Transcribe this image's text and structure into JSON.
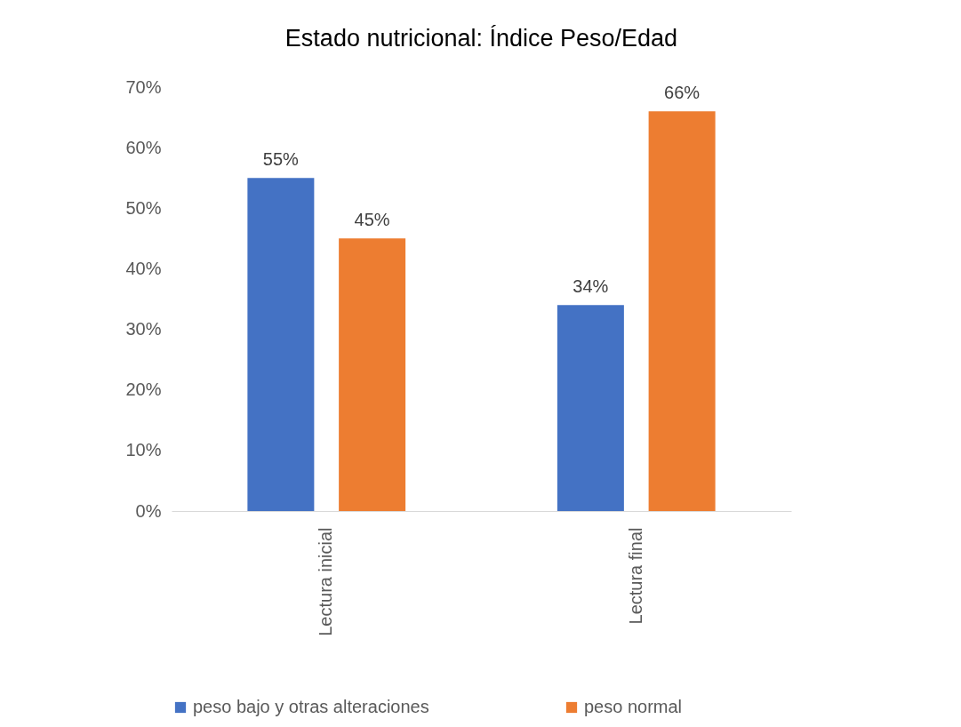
{
  "chart_data": {
    "type": "bar",
    "title": "Estado nutricional: Índice Peso/Edad",
    "categories": [
      "Lectura inicial",
      "Lectura final"
    ],
    "series": [
      {
        "name": "peso bajo y otras alteraciones",
        "color": "#4472c4",
        "values": [
          55,
          34
        ],
        "value_labels": [
          "55%",
          "34%"
        ]
      },
      {
        "name": "peso normal",
        "color": "#ed7d31",
        "values": [
          45,
          66
        ],
        "value_labels": [
          "45%",
          "66%"
        ]
      }
    ],
    "ylim": [
      0,
      70
    ],
    "yticks": [
      {
        "value": 0,
        "label": "0%"
      },
      {
        "value": 10,
        "label": "10%"
      },
      {
        "value": 20,
        "label": "20%"
      },
      {
        "value": 30,
        "label": "30%"
      },
      {
        "value": 40,
        "label": "40%"
      },
      {
        "value": 50,
        "label": "50%"
      },
      {
        "value": 60,
        "label": "60%"
      },
      {
        "value": 70,
        "label": "70%"
      }
    ],
    "grid": false,
    "legend": "bottom"
  }
}
